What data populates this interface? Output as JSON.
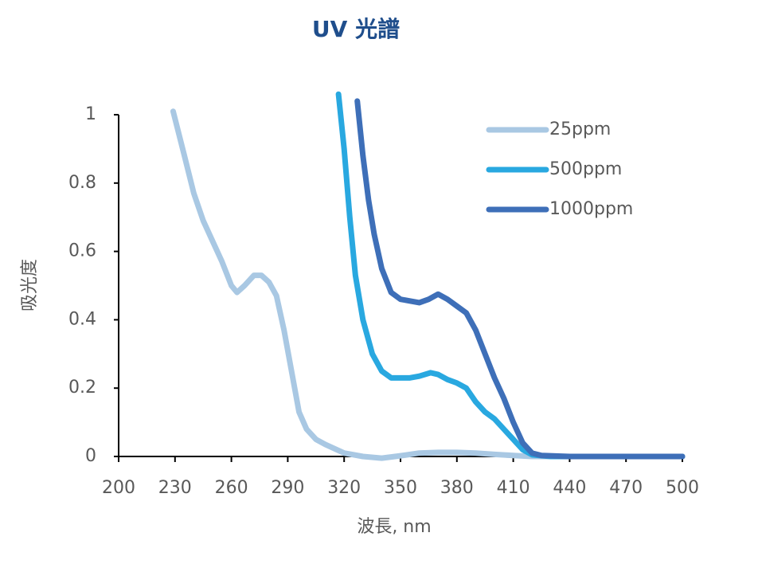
{
  "chart_data": {
    "type": "line",
    "title": "UV 光譜",
    "x_label": "波長, nm",
    "y_label": "吸光度",
    "xlim": [
      200,
      500
    ],
    "xticks": [
      200,
      230,
      260,
      290,
      320,
      350,
      380,
      410,
      440,
      470,
      500
    ],
    "ylim": [
      0,
      1
    ],
    "yticks": [
      0,
      0.2,
      0.4,
      0.6,
      0.8,
      1
    ],
    "legend": "upper right",
    "series": [
      {
        "name": "25ppm",
        "color": "#a9c8e3",
        "x": [
          229,
          235,
          240,
          245,
          250,
          255,
          260,
          263,
          267,
          272,
          276,
          280,
          284,
          288,
          292,
          296,
          300,
          305,
          310,
          320,
          330,
          340,
          350,
          360,
          370,
          380,
          390,
          400,
          410,
          420,
          440,
          500
        ],
        "values": [
          1.01,
          0.88,
          0.77,
          0.69,
          0.63,
          0.57,
          0.5,
          0.48,
          0.5,
          0.53,
          0.53,
          0.51,
          0.47,
          0.37,
          0.25,
          0.13,
          0.08,
          0.05,
          0.035,
          0.01,
          0.0,
          -0.005,
          0.002,
          0.01,
          0.012,
          0.012,
          0.01,
          0.006,
          0.003,
          0.0,
          0.0,
          0.0
        ]
      },
      {
        "name": "500ppm",
        "color": "#29a8e0",
        "x": [
          317,
          320,
          323,
          326,
          330,
          335,
          340,
          345,
          350,
          355,
          360,
          366,
          370,
          375,
          380,
          385,
          390,
          395,
          400,
          405,
          410,
          415,
          420,
          430,
          500
        ],
        "values": [
          1.06,
          0.9,
          0.7,
          0.53,
          0.4,
          0.3,
          0.25,
          0.23,
          0.23,
          0.23,
          0.235,
          0.245,
          0.24,
          0.225,
          0.215,
          0.2,
          0.16,
          0.13,
          0.11,
          0.08,
          0.05,
          0.02,
          0.005,
          0.0,
          0.0
        ]
      },
      {
        "name": "1000ppm",
        "color": "#3e6fb8",
        "x": [
          327,
          330,
          333,
          336,
          340,
          345,
          350,
          355,
          360,
          365,
          370,
          375,
          380,
          385,
          390,
          395,
          400,
          405,
          410,
          415,
          420,
          425,
          440,
          500
        ],
        "values": [
          1.04,
          0.88,
          0.75,
          0.65,
          0.55,
          0.48,
          0.46,
          0.455,
          0.45,
          0.46,
          0.475,
          0.46,
          0.44,
          0.42,
          0.37,
          0.3,
          0.23,
          0.17,
          0.1,
          0.04,
          0.01,
          0.003,
          0.0,
          0.0
        ]
      }
    ]
  }
}
